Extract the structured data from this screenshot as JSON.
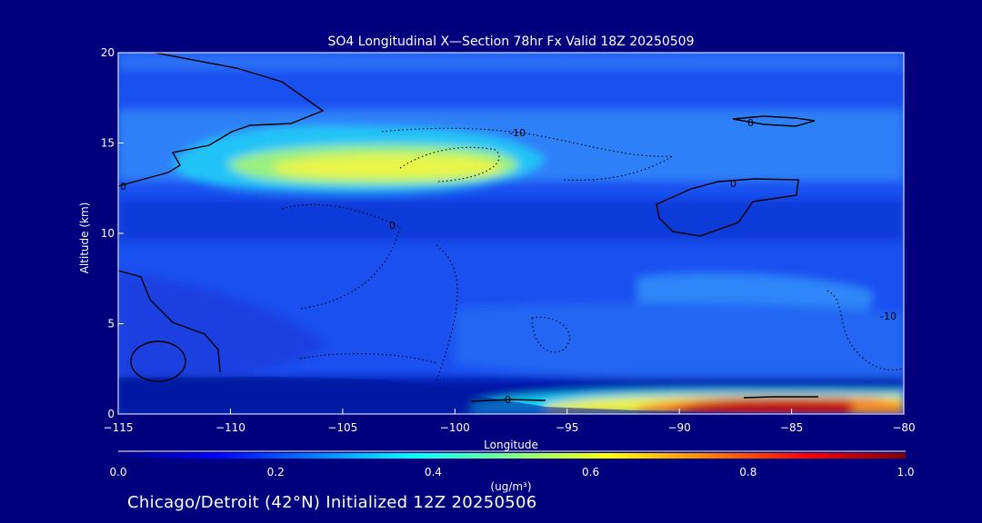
{
  "chart_data": {
    "type": "heatmap",
    "title": "SO4 Longitudinal X—Section 78hr  Fx Valid 18Z 20250509",
    "xlabel": "Longitude",
    "ylabel": "Altitude (km)",
    "xlim": [
      -115,
      -80
    ],
    "ylim": [
      0,
      20
    ],
    "xticks": [
      -115,
      -110,
      -105,
      -100,
      -95,
      -90,
      -85,
      -80
    ],
    "yticks": [
      0,
      5,
      10,
      15,
      20
    ],
    "colorbar": {
      "label": "(ug/m³)",
      "range": [
        0.0,
        1.0
      ],
      "ticks": [
        "0.0",
        "0.2",
        "0.4",
        "0.6",
        "0.8",
        "1.0"
      ],
      "colormap": [
        "#00007f",
        "#0000ff",
        "#0080ff",
        "#00ffff",
        "#80ff80",
        "#ffff00",
        "#ff8000",
        "#ff0000",
        "#800000"
      ]
    },
    "field_features": [
      {
        "name": "upper-layer-maximum",
        "lon": -103,
        "alt": 14,
        "value": 0.55
      },
      {
        "name": "surface-maximum",
        "lon": -86,
        "alt": 0.5,
        "value": 0.95
      },
      {
        "name": "mid-level-band",
        "lon": -95,
        "alt": 5,
        "value": 0.2
      }
    ],
    "contour_labels": [
      "-10",
      "0",
      "0",
      "0",
      "0",
      "-10",
      "0"
    ]
  },
  "footer_text": "Chicago/Detroit (42°N) Initialized 12Z 20250506"
}
